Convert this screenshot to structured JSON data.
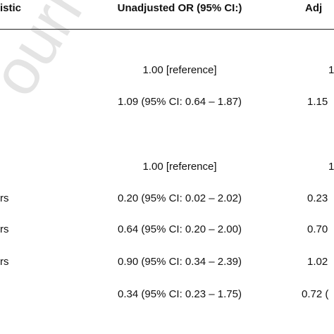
{
  "watermark": "ourna",
  "table": {
    "header": {
      "col1": "istic",
      "col2": "Unadjusted OR (95% CI:)",
      "col3": "Adj"
    },
    "rows": [
      {
        "col2": "1.00 [reference]",
        "col3": "1"
      },
      {
        "col2": "1.09 (95% CI: 0.64 – 1.87)",
        "col3": "1.15"
      },
      {
        "col2": "1.00 [reference]",
        "col3": "1"
      },
      {
        "col1": "rs",
        "col2": "0.20 (95% CI: 0.02 – 2.02)",
        "col3": "0.23"
      },
      {
        "col1": "rs",
        "col2": "0.64 (95% CI: 0.20 – 2.00)",
        "col3": "0.70"
      },
      {
        "col1": "rs",
        "col2": "0.90 (95% CI: 0.34 – 2.39)",
        "col3": "1.02"
      },
      {
        "col2": "0.34 (95% CI: 0.23 – 1.75)",
        "col3": "0.72 ("
      }
    ]
  }
}
